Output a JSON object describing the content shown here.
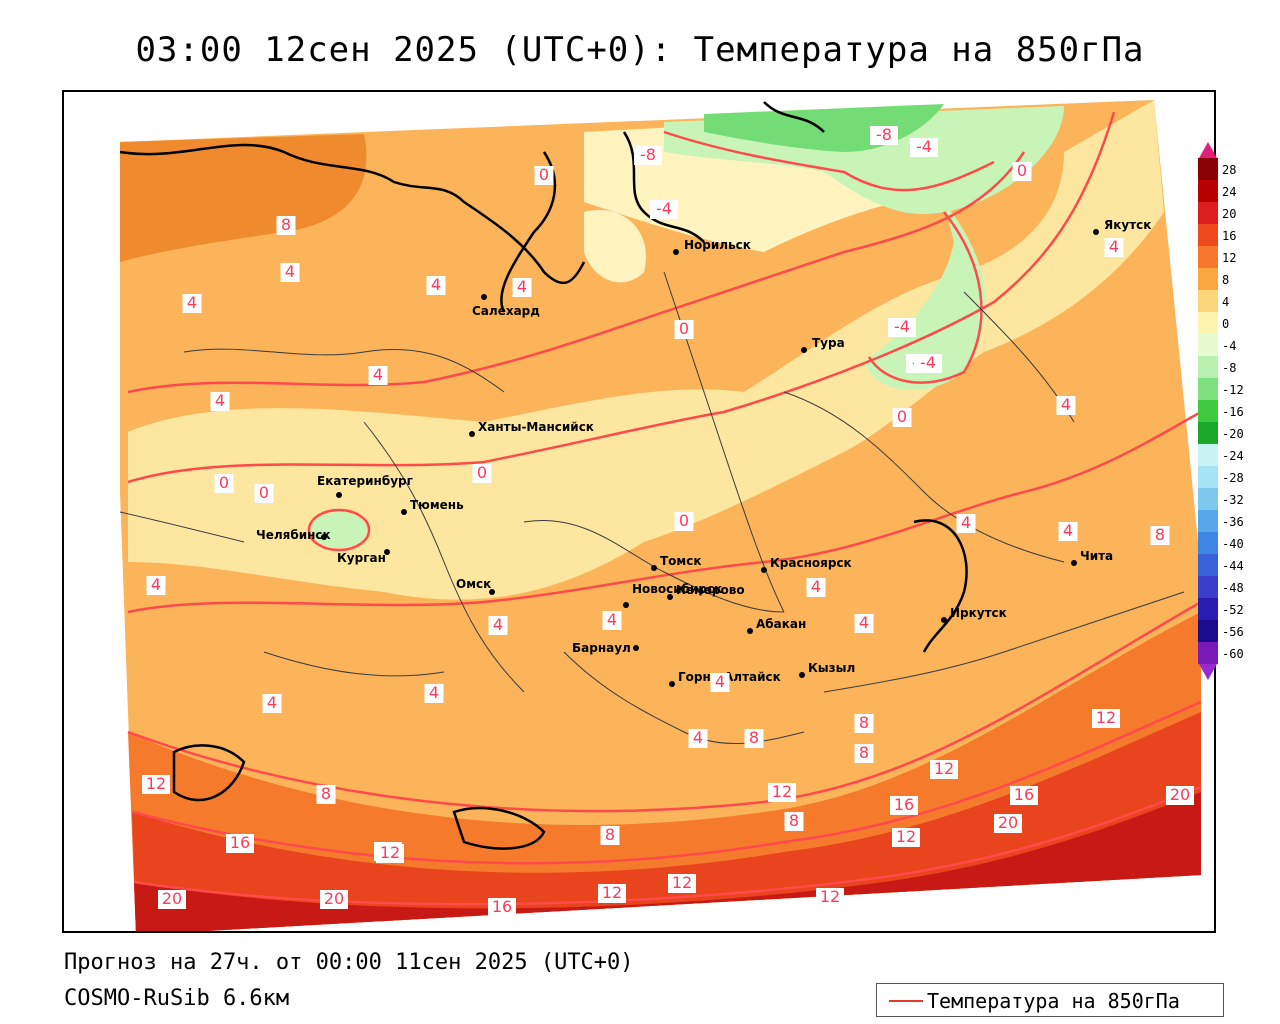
{
  "title": "03:00 12сен 2025 (UTC+0): Температура на 850гПа",
  "footer": {
    "forecast": "Прогноз на 27ч. от 00:00 11сен 2025 (UTC+0)",
    "model": "COSMO-RuSib 6.6км"
  },
  "legend": {
    "label": "Температура на 850гПа",
    "line_color": "#e23a2e"
  },
  "colorbar": {
    "ticks": [
      "28",
      "24",
      "20",
      "16",
      "12",
      "8",
      "4",
      "0",
      "-4",
      "-8",
      "-12",
      "-16",
      "-20",
      "-24",
      "-28",
      "-32",
      "-36",
      "-40",
      "-44",
      "-48",
      "-52",
      "-56",
      "-60"
    ],
    "colors": [
      "#8b0000",
      "#b80000",
      "#dc1e1e",
      "#ef4a1e",
      "#f7772e",
      "#fba63e",
      "#fdd57a",
      "#fff3b0",
      "#e8fbd0",
      "#b8f0b0",
      "#7fe07f",
      "#3fc93f",
      "#1aa82a",
      "#c6f4f4",
      "#a4e4f4",
      "#7ec8f0",
      "#5aa8ec",
      "#3e86e4",
      "#3a62d8",
      "#3a3ec8",
      "#2a1eb0",
      "#1a0c8c",
      "#7a1ab4"
    ],
    "cap_top_color": "#e0207a",
    "cap_bottom_color": "#9a2ad0"
  },
  "cities": [
    {
      "name": "Норильск"
    },
    {
      "name": "Якутск"
    },
    {
      "name": "Салехард"
    },
    {
      "name": "Тура"
    },
    {
      "name": "Ханты-Мансийск"
    },
    {
      "name": "Екатеринбург"
    },
    {
      "name": "Тюмень"
    },
    {
      "name": "Челябинск"
    },
    {
      "name": "Курган"
    },
    {
      "name": "Томск"
    },
    {
      "name": "Красноярск"
    },
    {
      "name": "Омск"
    },
    {
      "name": "Новосибирск"
    },
    {
      "name": "Кемерово"
    },
    {
      "name": "Чита"
    },
    {
      "name": "Иркутск"
    },
    {
      "name": "Абакан"
    },
    {
      "name": "Барнаул"
    },
    {
      "name": "Кызыл"
    },
    {
      "name": "Горно-Алтайск"
    }
  ],
  "isotherm_labels": [
    {
      "text": "-8"
    },
    {
      "text": "-4"
    },
    {
      "text": "-8"
    },
    {
      "text": "-4"
    },
    {
      "text": "0"
    },
    {
      "text": "0"
    },
    {
      "text": "8"
    },
    {
      "text": "4"
    },
    {
      "text": "4"
    },
    {
      "text": "4"
    },
    {
      "text": "4"
    },
    {
      "text": "4"
    },
    {
      "text": "4"
    },
    {
      "text": "0"
    },
    {
      "text": "-4"
    },
    {
      "text": "-4"
    },
    {
      "text": "4"
    },
    {
      "text": "0"
    },
    {
      "text": "0"
    },
    {
      "text": "0"
    },
    {
      "text": "0"
    },
    {
      "text": "0"
    },
    {
      "text": "4"
    },
    {
      "text": "4"
    },
    {
      "text": "4"
    },
    {
      "text": "4"
    },
    {
      "text": "4"
    },
    {
      "text": "8"
    },
    {
      "text": "4"
    },
    {
      "text": "4"
    },
    {
      "text": "4"
    },
    {
      "text": "4"
    },
    {
      "text": "4"
    },
    {
      "text": "8"
    },
    {
      "text": "8"
    },
    {
      "text": "8"
    },
    {
      "text": "12"
    },
    {
      "text": "12"
    },
    {
      "text": "8"
    },
    {
      "text": "12"
    },
    {
      "text": "12"
    },
    {
      "text": "16"
    },
    {
      "text": "8"
    },
    {
      "text": "16"
    },
    {
      "text": "12"
    },
    {
      "text": "20"
    },
    {
      "text": "16"
    },
    {
      "text": "20"
    },
    {
      "text": "12"
    },
    {
      "text": "16"
    },
    {
      "text": "20"
    },
    {
      "text": "12"
    },
    {
      "text": "8"
    },
    {
      "text": "12"
    },
    {
      "text": "12"
    },
    {
      "text": "12"
    },
    {
      "text": "20"
    },
    {
      "text": "4"
    },
    {
      "text": "4"
    },
    {
      "text": "-4"
    }
  ]
}
